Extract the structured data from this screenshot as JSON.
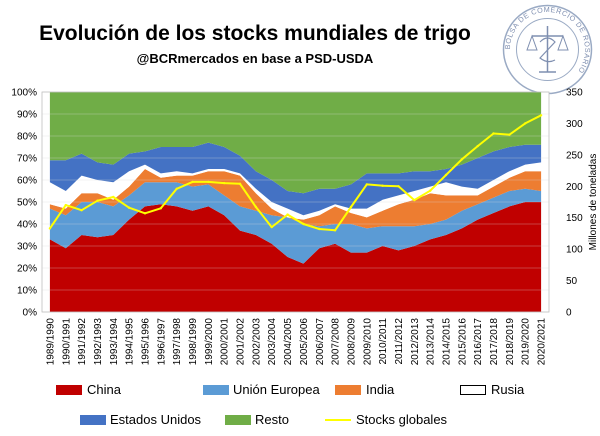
{
  "header": {
    "title": "Evolución de los stocks mundiales de trigo",
    "subtitle": "@BCRmercados en base a PSD-USDA",
    "seal_text": "BOLSA DE COMERCIO DE ROSARIO"
  },
  "chart_data": {
    "type": "area",
    "subtype": "stacked-percent-area with line on secondary axis",
    "title": "Evolución de los stocks mundiales de trigo",
    "subtitle": "@BCRmercados en base a PSD-USDA",
    "categories": [
      "1989/1990",
      "1990/1991",
      "1991/1992",
      "1992/1993",
      "1993/1994",
      "1994/1995",
      "1995/1996",
      "1996/1997",
      "1997/1998",
      "1998/1999",
      "1999/2000",
      "2000/2001",
      "2001/2002",
      "2002/2003",
      "2003/2004",
      "2004/2005",
      "2005/2006",
      "2006/2007",
      "2007/2008",
      "2008/2009",
      "2009/2010",
      "2010/2011",
      "2011/2012",
      "2012/2013",
      "2013/2014",
      "2014/2015",
      "2015/2016",
      "2016/2017",
      "2017/2018",
      "2018/2019",
      "2019/2020",
      "2020/2021"
    ],
    "y_left": {
      "ticks": [
        "0%",
        "10%",
        "20%",
        "30%",
        "40%",
        "50%",
        "60%",
        "70%",
        "80%",
        "90%",
        "100%"
      ],
      "ylim": [
        0,
        100
      ]
    },
    "y_right": {
      "label": "Millones de toneladas",
      "ticks": [
        "0",
        "50",
        "100",
        "150",
        "200",
        "250",
        "300",
        "350"
      ],
      "ylim": [
        0,
        350
      ]
    },
    "grid": true,
    "legend_position": "bottom",
    "series": [
      {
        "name": "China",
        "color": "#c00000",
        "values": [
          33,
          29,
          35,
          34,
          35,
          42,
          48,
          49,
          48,
          46,
          48,
          44,
          37,
          35,
          31,
          25,
          22,
          29,
          31,
          27,
          27,
          30,
          28,
          30,
          33,
          35,
          38,
          42,
          45,
          48,
          50,
          50
        ]
      },
      {
        "name": "Unión Europea",
        "color": "#5b9bd5",
        "values": [
          14,
          15,
          15,
          16,
          13,
          11,
          11,
          10,
          11,
          11,
          10,
          9,
          11,
          11,
          13,
          18,
          18,
          10,
          9,
          13,
          11,
          9,
          11,
          9,
          7,
          7,
          8,
          7,
          7,
          7,
          6,
          5
        ]
      },
      {
        "name": "India",
        "color": "#ed7d31",
        "values": [
          2,
          3,
          4,
          4,
          3,
          4,
          6,
          2,
          3,
          5,
          6,
          11,
          14,
          8,
          3,
          0,
          2,
          5,
          8,
          5,
          5,
          7,
          10,
          12,
          14,
          11,
          7,
          4,
          5,
          6,
          8,
          9
        ]
      },
      {
        "name": "Rusia",
        "color": "#ffffff",
        "values": [
          10,
          8,
          8,
          6,
          8,
          7,
          2,
          2,
          2,
          1,
          1,
          1,
          1,
          2,
          3,
          4,
          2,
          2,
          1,
          2,
          4,
          5,
          4,
          4,
          3,
          6,
          4,
          3,
          3,
          3,
          3,
          4
        ]
      },
      {
        "name": "Estados Unidos",
        "color": "#4472c4",
        "values": [
          10,
          14,
          10,
          8,
          8,
          8,
          6,
          12,
          11,
          12,
          12,
          10,
          8,
          8,
          10,
          8,
          10,
          10,
          7,
          11,
          16,
          12,
          10,
          9,
          7,
          6,
          10,
          14,
          13,
          11,
          9,
          8
        ]
      },
      {
        "name": "Resto",
        "color": "#70ad47",
        "values": [
          31,
          31,
          28,
          32,
          33,
          28,
          27,
          25,
          25,
          25,
          23,
          25,
          29,
          36,
          40,
          45,
          46,
          44,
          44,
          42,
          37,
          37,
          37,
          36,
          36,
          35,
          33,
          30,
          27,
          25,
          24,
          24
        ]
      }
    ],
    "line_series": {
      "name": "Stocks globales",
      "color": "#ffff00",
      "axis": "right",
      "values": [
        133,
        170,
        162,
        177,
        183,
        166,
        157,
        165,
        196,
        207,
        207,
        205,
        204,
        167,
        135,
        155,
        140,
        132,
        130,
        167,
        203,
        201,
        200,
        178,
        193,
        218,
        243,
        264,
        284,
        282,
        300,
        313
      ]
    }
  }
}
